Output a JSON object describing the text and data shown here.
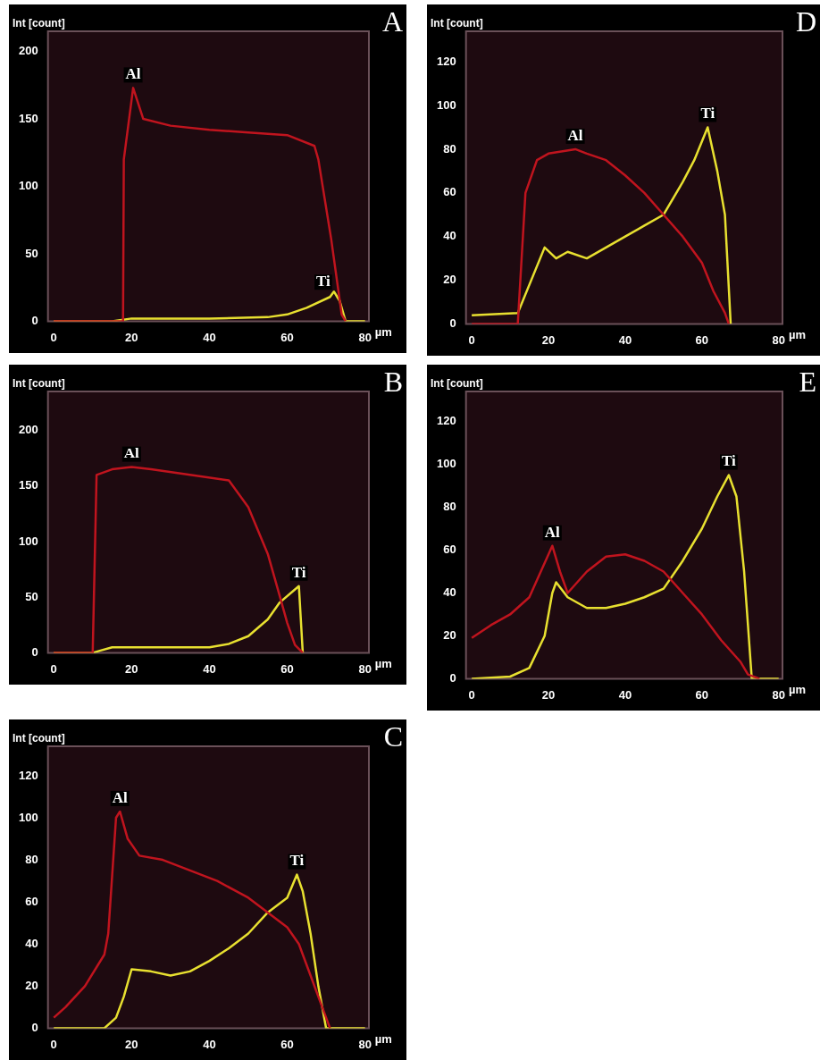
{
  "chart_data": [
    {
      "type": "line",
      "title": "A",
      "xlabel": "µm",
      "ylabel": "Int [count]",
      "xlim": [
        -1.5,
        81
      ],
      "ylim": [
        0,
        215
      ],
      "xticks": [
        0,
        20,
        40,
        60,
        80
      ],
      "yticks": [
        0,
        50,
        100,
        150,
        200
      ],
      "series": [
        {
          "name": "Al",
          "color": "#c0141e",
          "x": [
            0,
            17.8,
            18,
            20.4,
            23,
            30,
            40,
            50,
            60,
            67,
            68,
            71.3,
            74,
            75
          ],
          "values": [
            0,
            0,
            120,
            173,
            150,
            145,
            142,
            140,
            138,
            130,
            120,
            61,
            5,
            0
          ]
        },
        {
          "name": "Ti",
          "color": "#e8e030",
          "x": [
            0,
            15,
            20,
            30,
            40,
            55,
            60,
            65,
            71,
            72,
            73.5,
            75,
            80
          ],
          "values": [
            0,
            0,
            2,
            2,
            2,
            3,
            5,
            10,
            18,
            22,
            15,
            0,
            0
          ]
        }
      ]
    },
    {
      "type": "line",
      "title": "D",
      "xlabel": "µm",
      "ylabel": "Int [count]",
      "xlim": [
        -1.5,
        81
      ],
      "ylim": [
        0,
        134
      ],
      "xticks": [
        0,
        20,
        40,
        60,
        80
      ],
      "yticks": [
        0,
        20,
        40,
        60,
        80,
        100,
        120
      ],
      "series": [
        {
          "name": "Al",
          "color": "#c0141e",
          "x": [
            0,
            12,
            14,
            17,
            20,
            27,
            30,
            35,
            40,
            45,
            50,
            55,
            60,
            63,
            66,
            67
          ],
          "values": [
            0,
            0,
            60,
            75,
            78,
            80,
            78,
            75,
            68,
            60,
            50,
            40,
            28,
            15,
            5,
            0
          ]
        },
        {
          "name": "Ti",
          "color": "#e8e030",
          "x": [
            0,
            12,
            19,
            22,
            25,
            30,
            35,
            40,
            45,
            50,
            55,
            58,
            61.5,
            64,
            66,
            67.5
          ],
          "values": [
            4,
            5,
            35,
            30,
            33,
            30,
            35,
            40,
            45,
            50,
            65,
            75,
            90,
            70,
            50,
            0
          ]
        }
      ]
    },
    {
      "type": "line",
      "title": "B",
      "xlabel": "µm",
      "ylabel": "Int [count]",
      "xlim": [
        -1.5,
        81
      ],
      "ylim": [
        0,
        235
      ],
      "xticks": [
        0,
        20,
        40,
        60,
        80
      ],
      "yticks": [
        0,
        50,
        100,
        150,
        200
      ],
      "series": [
        {
          "name": "Al",
          "color": "#c0141e",
          "x": [
            0,
            10,
            11,
            15,
            20,
            25,
            35,
            45,
            50,
            55,
            58,
            60,
            62,
            64
          ],
          "values": [
            0,
            0,
            160,
            165,
            167,
            165,
            160,
            155,
            131,
            89,
            52,
            27,
            7,
            0
          ]
        },
        {
          "name": "Ti",
          "color": "#e8e030",
          "x": [
            0,
            10,
            12,
            15,
            40,
            45,
            50,
            55,
            58,
            62,
            63,
            64
          ],
          "values": [
            0,
            0,
            2,
            5,
            5,
            8,
            15,
            30,
            45,
            57,
            60,
            0
          ]
        }
      ]
    },
    {
      "type": "line",
      "title": "E",
      "xlabel": "µm",
      "ylabel": "Int [count]",
      "xlim": [
        -1.5,
        81
      ],
      "ylim": [
        0,
        134
      ],
      "xticks": [
        0,
        20,
        40,
        60,
        80
      ],
      "yticks": [
        0,
        20,
        40,
        60,
        80,
        100,
        120
      ],
      "series": [
        {
          "name": "Al",
          "color": "#c0141e",
          "x": [
            0,
            5,
            10,
            15,
            18,
            21,
            23,
            25,
            30,
            35,
            40,
            45,
            50,
            55,
            60,
            65,
            70,
            72,
            75
          ],
          "values": [
            19,
            25,
            30,
            38,
            50,
            62,
            50,
            40,
            50,
            57,
            58,
            55,
            50,
            40,
            30,
            18,
            8,
            2,
            0
          ]
        },
        {
          "name": "Ti",
          "color": "#e8e030",
          "x": [
            0,
            10,
            15,
            19,
            21,
            22,
            25,
            30,
            35,
            40,
            45,
            50,
            55,
            60,
            64,
            67,
            69,
            71,
            73,
            80
          ],
          "values": [
            0,
            1,
            5,
            20,
            40,
            45,
            38,
            33,
            33,
            35,
            38,
            42,
            55,
            70,
            85,
            95,
            85,
            50,
            0,
            0
          ]
        }
      ]
    },
    {
      "type": "line",
      "title": "C",
      "xlabel": "µm",
      "ylabel": "Int [count]",
      "xlim": [
        -1.5,
        81
      ],
      "ylim": [
        0,
        134
      ],
      "xticks": [
        0,
        20,
        40,
        60,
        80
      ],
      "yticks": [
        0,
        20,
        40,
        60,
        80,
        100,
        120
      ],
      "series": [
        {
          "name": "Al",
          "color": "#c0141e",
          "x": [
            0,
            3,
            8,
            13,
            14,
            16,
            17,
            19,
            22,
            28,
            35,
            42,
            50,
            55,
            60,
            63,
            66,
            69,
            71
          ],
          "values": [
            5,
            10,
            20,
            35,
            45,
            100,
            103,
            90,
            82,
            80,
            75,
            70,
            62,
            55,
            48,
            40,
            25,
            10,
            0
          ]
        },
        {
          "name": "Ti",
          "color": "#e8e030",
          "x": [
            0,
            13,
            16,
            18,
            20,
            25,
            30,
            35,
            40,
            45,
            50,
            55,
            60,
            62.5,
            64,
            66,
            68,
            70,
            80
          ],
          "values": [
            0,
            0,
            5,
            15,
            28,
            27,
            25,
            27,
            32,
            38,
            45,
            55,
            62,
            73,
            65,
            45,
            20,
            0,
            0
          ]
        }
      ]
    }
  ]
}
